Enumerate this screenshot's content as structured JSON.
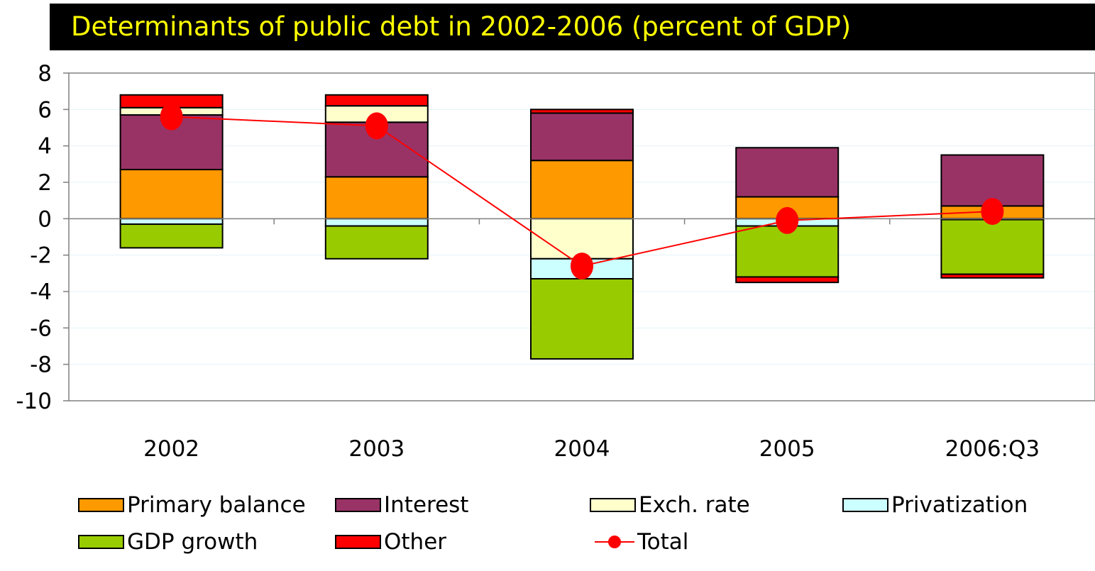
{
  "title": "Determinants of public debt in 2002-2006 (percent of GDP)",
  "colors": {
    "title_bg": "#000000",
    "title_text": "#ffff00",
    "primary_balance": "#ff9900",
    "interest": "#993366",
    "exch_rate": "#ffffcc",
    "privatization": "#ccffff",
    "gdp_growth": "#99cc00",
    "other": "#ff0000",
    "total": "#ff0000"
  },
  "chart_data": {
    "type": "bar",
    "stacked": true,
    "categories": [
      "2002",
      "2003",
      "2004",
      "2005",
      "2006:Q3"
    ],
    "ylim": [
      -10,
      8
    ],
    "yticks": [
      8,
      6,
      4,
      2,
      0,
      -2,
      -4,
      -6,
      -8,
      -10
    ],
    "grid": true,
    "legend_position": "bottom",
    "series": [
      {
        "name": "Primary balance",
        "color": "#ff9900",
        "values": [
          2.7,
          2.3,
          3.2,
          1.2,
          0.7
        ]
      },
      {
        "name": "Interest",
        "color": "#993366",
        "values": [
          3.0,
          3.0,
          2.6,
          2.7,
          2.8
        ]
      },
      {
        "name": "Exch. rate",
        "color": "#ffffcc",
        "values": [
          0.4,
          0.9,
          -2.2,
          0.0,
          0.0
        ]
      },
      {
        "name": "Privatization",
        "color": "#ccffff",
        "values": [
          -0.3,
          -0.4,
          -1.1,
          -0.4,
          -0.05
        ]
      },
      {
        "name": "GDP growth",
        "color": "#99cc00",
        "values": [
          -1.3,
          -1.8,
          -4.4,
          -2.8,
          -3.0
        ]
      },
      {
        "name": "Other",
        "color": "#ff0000",
        "values": [
          0.7,
          0.6,
          0.2,
          -0.3,
          -0.2
        ]
      }
    ],
    "line_series": {
      "name": "Total",
      "color": "#ff0000",
      "values": [
        5.6,
        5.1,
        -2.6,
        -0.1,
        0.4
      ]
    }
  },
  "legend": {
    "primary_balance": "Primary balance",
    "interest": "Interest",
    "exch_rate": "Exch. rate",
    "privatization": "Privatization",
    "gdp_growth": "GDP growth",
    "other": "Other",
    "total": "Total"
  }
}
